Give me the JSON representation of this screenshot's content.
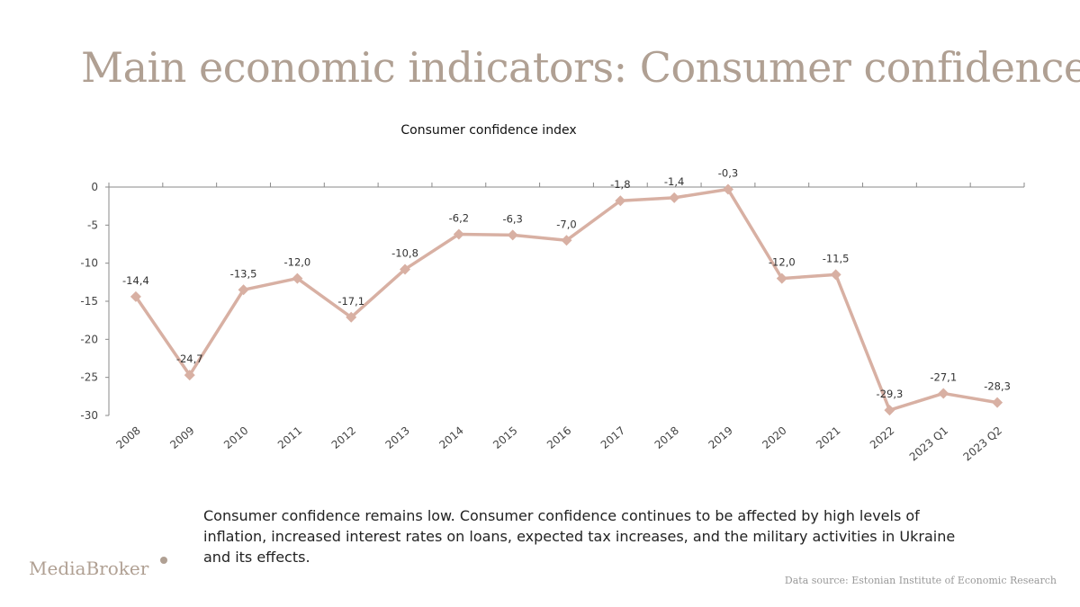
{
  "slide": {
    "title": "Main economic indicators: Consumer confidence",
    "caption": "Consumer confidence remains low. Consumer confidence continues to be affected by high levels of inflation, increased interest rates on loans, expected tax increases, and the military activities in Ukraine and its effects.",
    "logo": "MediaBroker",
    "source": "Data source: Estonian Institute of Economic Research"
  },
  "colors": {
    "series": "#d8b0a3",
    "title": "#b0a093",
    "axis": "#8a8a8a"
  },
  "chart_data": {
    "type": "line",
    "title": "Consumer confidence index",
    "xlabel": "",
    "ylabel": "",
    "categories": [
      "2008",
      "2009",
      "2010",
      "2011",
      "2012",
      "2013",
      "2014",
      "2015",
      "2016",
      "2017",
      "2018",
      "2019",
      "2020",
      "2021",
      "2022",
      "2023 Q1",
      "2023 Q2"
    ],
    "series": [
      {
        "values": [
          -14.4,
          -24.7,
          -13.5,
          -12.0,
          -17.1,
          -10.8,
          -6.2,
          -6.3,
          -7.0,
          -1.8,
          -1.4,
          -0.3,
          -12.0,
          -11.5,
          -29.3,
          -27.1,
          -28.3
        ],
        "labels": [
          "-14,4",
          "-24,7",
          "-13,5",
          "-12,0",
          "-17,1",
          "-10,8",
          "-6,2",
          "-6,3",
          "-7,0",
          "-1,8",
          "-1,4",
          "-0,3",
          "-12,0",
          "-11,5",
          "-29,3",
          "-27,1",
          "-28,3"
        ]
      }
    ],
    "ylim": [
      -30,
      0
    ],
    "yticks": [
      0,
      -5,
      -10,
      -15,
      -20,
      -25,
      -30
    ],
    "marker": "diamond",
    "grid": false,
    "legend": "none"
  }
}
